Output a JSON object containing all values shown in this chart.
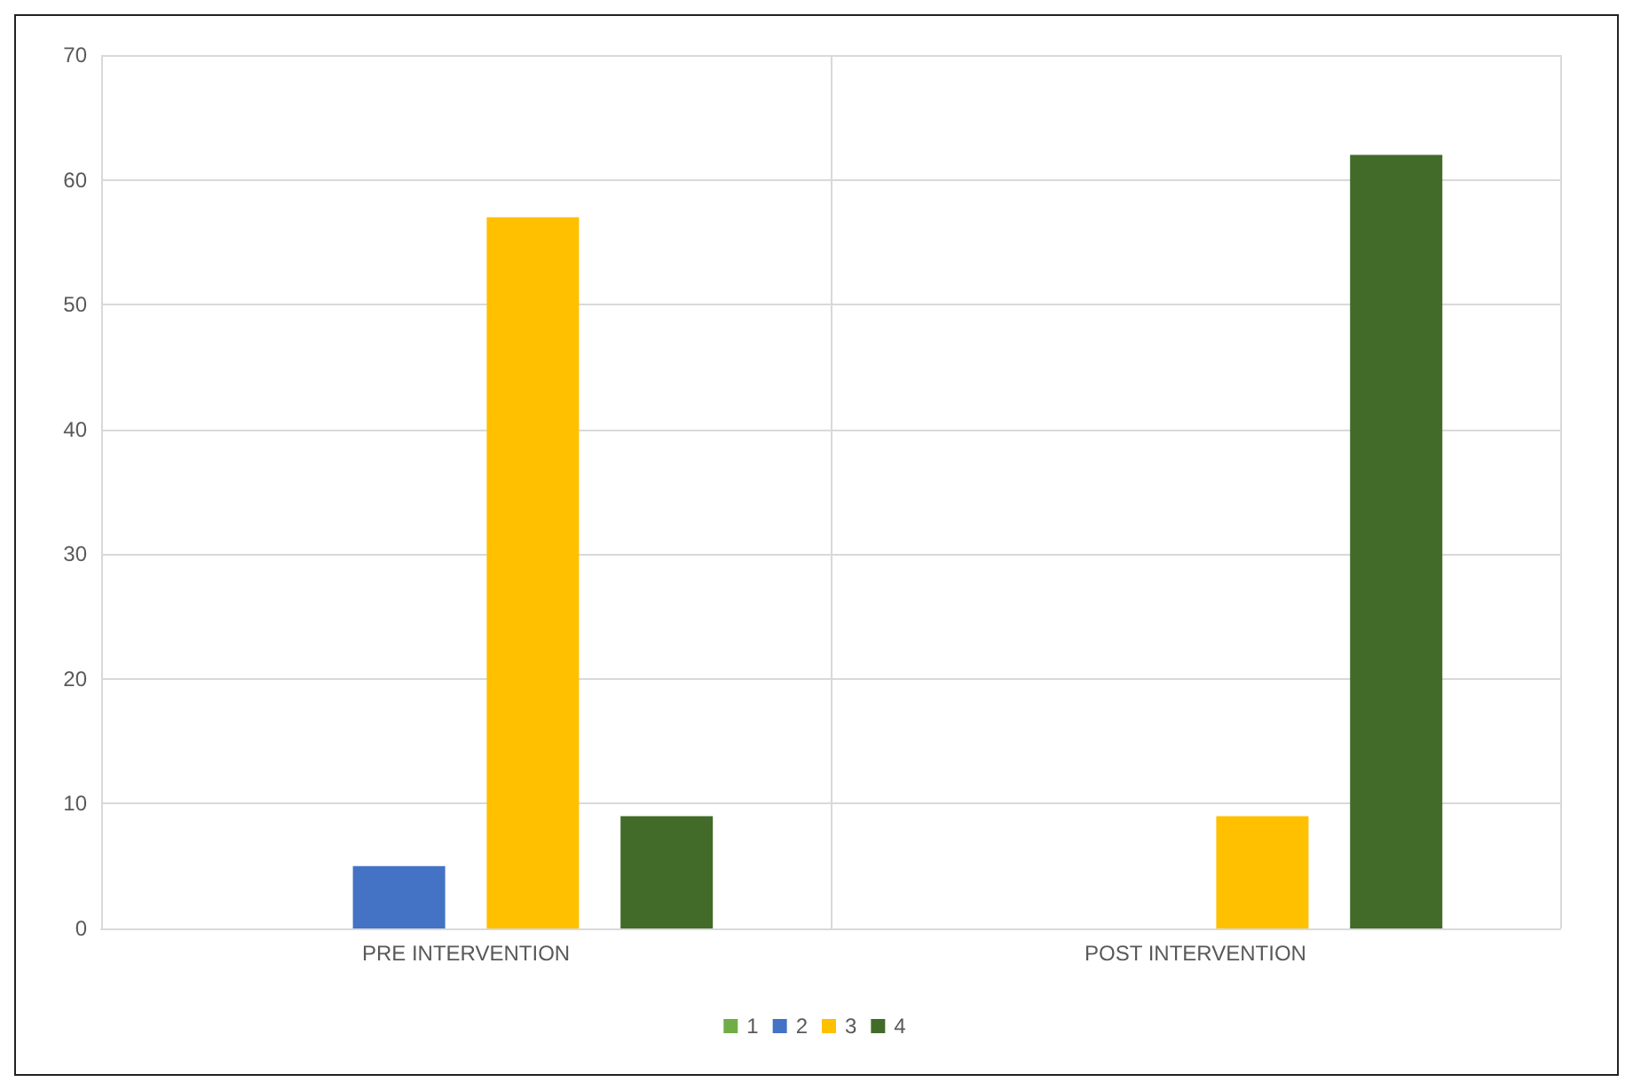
{
  "chart_data": {
    "type": "bar",
    "categories": [
      "PRE INTERVENTION",
      "POST INTERVENTION"
    ],
    "series": [
      {
        "name": "1",
        "color": "#70ad47",
        "values": [
          0,
          0
        ]
      },
      {
        "name": "2",
        "color": "#4472c4",
        "values": [
          5,
          0
        ]
      },
      {
        "name": "3",
        "color": "#ffc000",
        "values": [
          57,
          9
        ]
      },
      {
        "name": "4",
        "color": "#426b29",
        "values": [
          9,
          62
        ]
      }
    ],
    "ylim": [
      0,
      70
    ],
    "yticks": [
      0,
      10,
      20,
      30,
      40,
      50,
      60,
      70
    ],
    "grid": true,
    "legend": "bottom"
  }
}
